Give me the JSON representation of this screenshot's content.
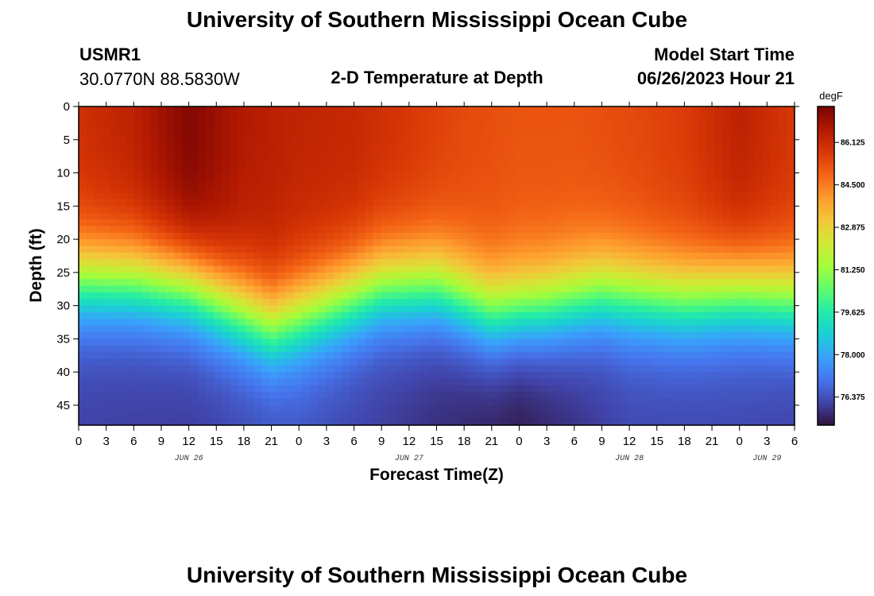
{
  "header": {
    "title_top": "University of Southern Mississippi Ocean Cube",
    "title_bottom": "University of Southern Mississippi Ocean Cube",
    "station_id": "USMR1",
    "station_coords": "30.0770N  88.5830W",
    "plot_title": "2-D Temperature at Depth",
    "model_start_label": "Model Start Time",
    "model_start_value": "06/26/2023 Hour 21"
  },
  "chart_data": {
    "type": "heatmap",
    "title": "2-D Temperature at Depth",
    "xlabel": "Forecast Time(Z)",
    "ylabel": "Depth (ft)",
    "x_range_hours": [
      0,
      78
    ],
    "y_range_ft": [
      0,
      48
    ],
    "x_tick_labels": [
      "0",
      "3",
      "6",
      "9",
      "12",
      "15",
      "18",
      "21",
      "0",
      "3",
      "6",
      "9",
      "12",
      "15",
      "18",
      "21",
      "0",
      "3",
      "6",
      "9",
      "12",
      "15",
      "18",
      "21",
      "0",
      "3",
      "6"
    ],
    "y_ticks": [
      0,
      5,
      10,
      15,
      20,
      25,
      30,
      35,
      40,
      45
    ],
    "y_tick_labels": [
      "0",
      "5",
      "10",
      "15",
      "20",
      "25",
      "30",
      "35",
      "40",
      "45"
    ],
    "date_labels": [
      {
        "label": "JUN 26",
        "hour": 12
      },
      {
        "label": "JUN 27",
        "hour": 36
      },
      {
        "label": "JUN 28",
        "hour": 60
      },
      {
        "label": "JUN 29",
        "hour": 75
      }
    ],
    "colorbar": {
      "unit": "degF",
      "min": 75.3,
      "max": 87.5,
      "tick_values": [
        86.125,
        84.5,
        82.875,
        81.25,
        79.625,
        78.0,
        76.375
      ],
      "tick_labels": [
        "86.125",
        "84.500",
        "82.875",
        "81.250",
        "79.625",
        "78.000",
        "76.375"
      ],
      "colors": [
        "#30123b",
        "#4145ab",
        "#4675ed",
        "#39a2fc",
        "#1bcfd4",
        "#24eca6",
        "#61fc6c",
        "#a4fc3b",
        "#d1e834",
        "#f3c63a",
        "#fe9b2d",
        "#f36315",
        "#d93806",
        "#b11901",
        "#7a0402"
      ]
    },
    "surface_temp_degF": [
      {
        "hour": 0,
        "value": 86.0
      },
      {
        "hour": 6,
        "value": 86.4
      },
      {
        "hour": 12,
        "value": 87.4
      },
      {
        "hour": 18,
        "value": 86.6
      },
      {
        "hour": 24,
        "value": 86.3
      },
      {
        "hour": 30,
        "value": 86.2
      },
      {
        "hour": 36,
        "value": 85.8
      },
      {
        "hour": 42,
        "value": 85.4
      },
      {
        "hour": 48,
        "value": 85.2
      },
      {
        "hour": 54,
        "value": 85.2
      },
      {
        "hour": 60,
        "value": 85.4
      },
      {
        "hour": 66,
        "value": 85.7
      },
      {
        "hour": 72,
        "value": 86.4
      },
      {
        "hour": 78,
        "value": 85.8
      }
    ],
    "thermocline_depth_ft": [
      {
        "hour": 0,
        "value": 26
      },
      {
        "hour": 6,
        "value": 26
      },
      {
        "hour": 12,
        "value": 27
      },
      {
        "hour": 18,
        "value": 31
      },
      {
        "hour": 21,
        "value": 33
      },
      {
        "hour": 27,
        "value": 30
      },
      {
        "hour": 33,
        "value": 27
      },
      {
        "hour": 39,
        "value": 27
      },
      {
        "hour": 45,
        "value": 31
      },
      {
        "hour": 51,
        "value": 30
      },
      {
        "hour": 57,
        "value": 28
      },
      {
        "hour": 66,
        "value": 29
      },
      {
        "hour": 72,
        "value": 28
      },
      {
        "hour": 78,
        "value": 29
      }
    ],
    "bottom_temp_degF": [
      {
        "hour": 0,
        "value": 76.1
      },
      {
        "hour": 12,
        "value": 76.0
      },
      {
        "hour": 24,
        "value": 76.4
      },
      {
        "hour": 36,
        "value": 75.9
      },
      {
        "hour": 48,
        "value": 75.4
      },
      {
        "hour": 60,
        "value": 76.2
      },
      {
        "hour": 72,
        "value": 76.2
      },
      {
        "hour": 78,
        "value": 76.1
      }
    ]
  }
}
